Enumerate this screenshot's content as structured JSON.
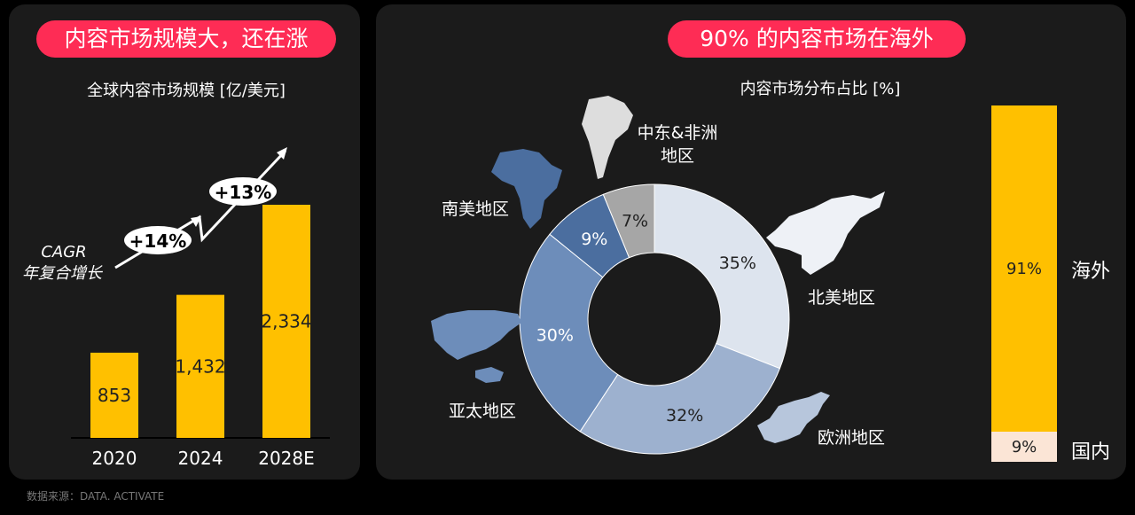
{
  "left": {
    "banner": "内容市场规模大，还在涨",
    "subtitle": "全球内容市场规模 [亿/美元]",
    "cagr_label_1": "CAGR",
    "cagr_label_2": "年复合增长",
    "growth_1": "+14%",
    "growth_2": "+13%"
  },
  "right": {
    "banner": "90% 的内容市场在海外",
    "subtitle": "内容市场分布占比 [%]"
  },
  "source": "数据来源：DATA. ACTIVATE",
  "colors": {
    "banner": "#fe2c55",
    "bar": "#ffc000",
    "domestic": "#fbe5d6",
    "panel": "#1b1b1b"
  },
  "chart_data": [
    {
      "type": "bar",
      "categories": [
        "2020",
        "2024",
        "2028E"
      ],
      "values": [
        853,
        1432,
        2334
      ],
      "value_labels": [
        "853",
        "1,432",
        "2,334"
      ],
      "title": "全球内容市场规模 [亿/美元]",
      "ylim": [
        0,
        2334
      ],
      "grid": false
    },
    {
      "type": "pie",
      "donut": true,
      "title": "内容市场分布占比 [%]",
      "slices": [
        {
          "label": "北美地区",
          "value": 35,
          "display": "35%",
          "color": "#dde4ee",
          "text_color": "#222"
        },
        {
          "label": "欧洲地区",
          "value": 32,
          "display": "32%",
          "color": "#9db1cf",
          "text_color": "#222"
        },
        {
          "label": "亚太地区",
          "value": 30,
          "display": "30%",
          "color": "#6d8dba",
          "text_color": "#fff"
        },
        {
          "label": "南美地区",
          "value": 9,
          "display": "9%",
          "color": "#4b6e9f",
          "text_color": "#fff"
        },
        {
          "label": "中东&非洲地区",
          "value": 7,
          "display": "7%",
          "color": "#a6a6a6",
          "text_color": "#222"
        }
      ]
    },
    {
      "type": "bar",
      "stacked": true,
      "segments": [
        {
          "label": "海外",
          "value": 91,
          "display": "91%",
          "color": "#ffc000"
        },
        {
          "label": "国内",
          "value": 9,
          "display": "9%",
          "color": "#fbe5d6"
        }
      ]
    }
  ]
}
